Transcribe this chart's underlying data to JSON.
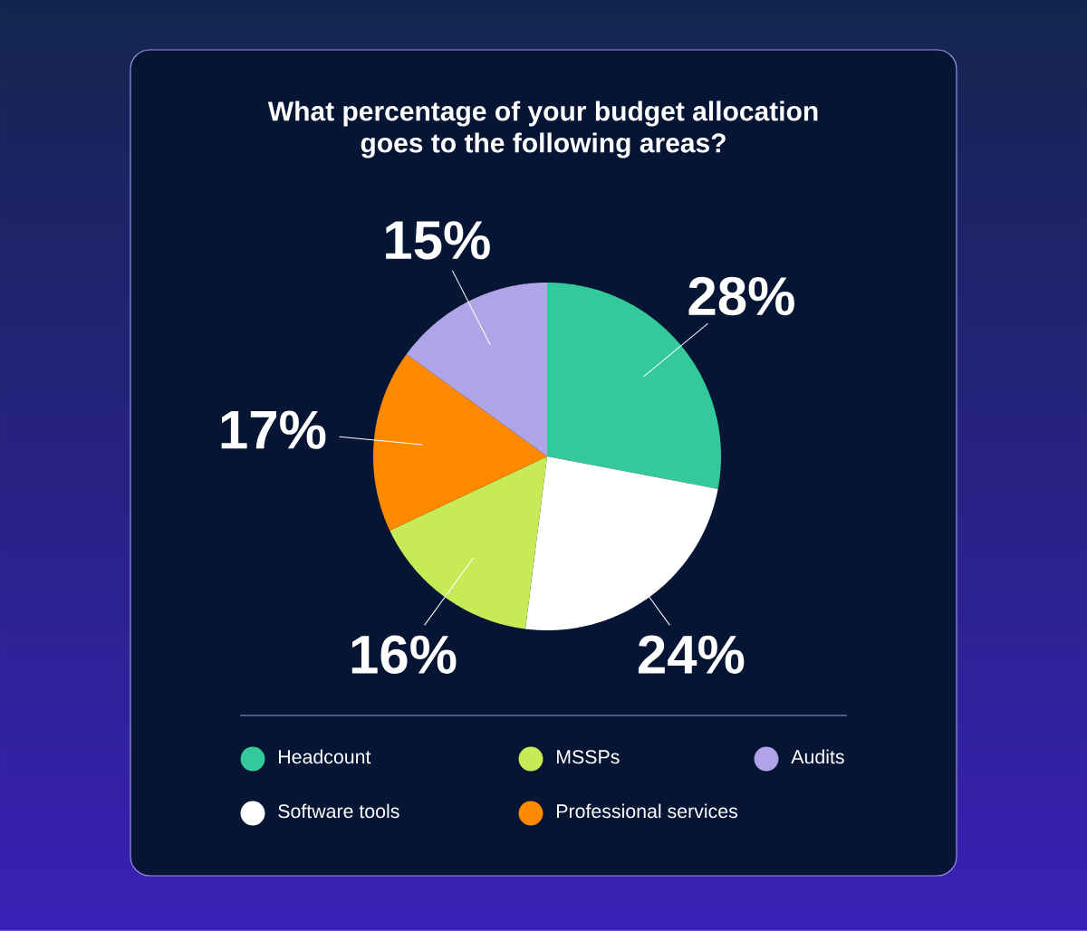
{
  "chart_data": {
    "type": "pie",
    "title": "What percentage of your budget allocation goes to the following areas?",
    "categories": [
      "Headcount",
      "Software tools",
      "MSSPs",
      "Professional services",
      "Audits"
    ],
    "values": [
      28,
      24,
      16,
      17,
      15
    ],
    "colors": [
      "#34c99b",
      "#ffffff",
      "#c6eb57",
      "#ff8a00",
      "#b0a4e8"
    ],
    "value_labels": [
      "28%",
      "24%",
      "16%",
      "17%",
      "15%"
    ],
    "legend": "bottom"
  }
}
